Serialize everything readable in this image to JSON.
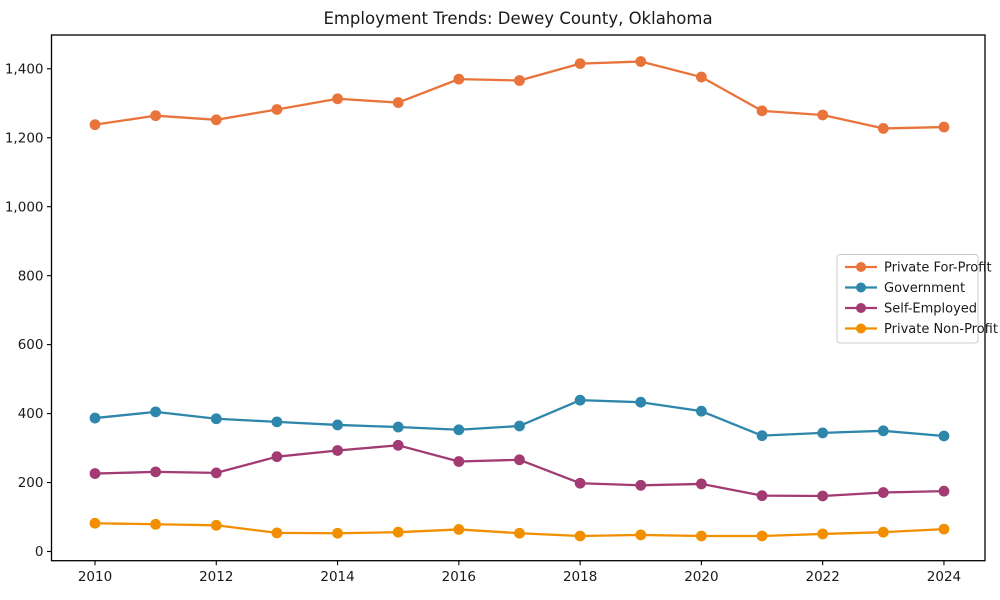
{
  "chart_data": {
    "type": "line",
    "title": "Employment Trends: Dewey County, Oklahoma",
    "xlabel": "",
    "ylabel": "",
    "grid": false,
    "legend_position": "center right",
    "x": [
      2010,
      2011,
      2012,
      2013,
      2014,
      2015,
      2016,
      2017,
      2018,
      2019,
      2020,
      2021,
      2022,
      2023,
      2024
    ],
    "x_ticks": [
      2010,
      2012,
      2014,
      2016,
      2018,
      2020,
      2022,
      2024
    ],
    "x_tick_labels": [
      "2010",
      "2012",
      "2014",
      "2016",
      "2018",
      "2020",
      "2022",
      "2024"
    ],
    "y_ticks": [
      0,
      200,
      400,
      600,
      800,
      1000,
      1200,
      1400
    ],
    "y_tick_labels": [
      "0",
      "200",
      "400",
      "600",
      "800",
      "1,000",
      "1,200",
      "1,400"
    ],
    "ylim": [
      -30,
      1495
    ],
    "series": [
      {
        "name": "Private For-Profit",
        "color": "#E8743B",
        "values": [
          1238,
          1264,
          1252,
          1282,
          1313,
          1302,
          1370,
          1366,
          1415,
          1421,
          1376,
          1278,
          1266,
          1227,
          1231
        ]
      },
      {
        "name": "Government",
        "color": "#2E86AB",
        "values": [
          387,
          405,
          385,
          376,
          367,
          361,
          353,
          364,
          439,
          433,
          407,
          336,
          344,
          350,
          335
        ]
      },
      {
        "name": "Self-Employed",
        "color": "#A23B72",
        "values": [
          226,
          231,
          228,
          275,
          293,
          308,
          261,
          266,
          198,
          192,
          196,
          162,
          161,
          171,
          175
        ]
      },
      {
        "name": "Private Non-Profit",
        "color": "#F18F01",
        "values": [
          82,
          79,
          76,
          54,
          53,
          56,
          64,
          53,
          45,
          48,
          45,
          45,
          51,
          56,
          65
        ]
      }
    ]
  }
}
